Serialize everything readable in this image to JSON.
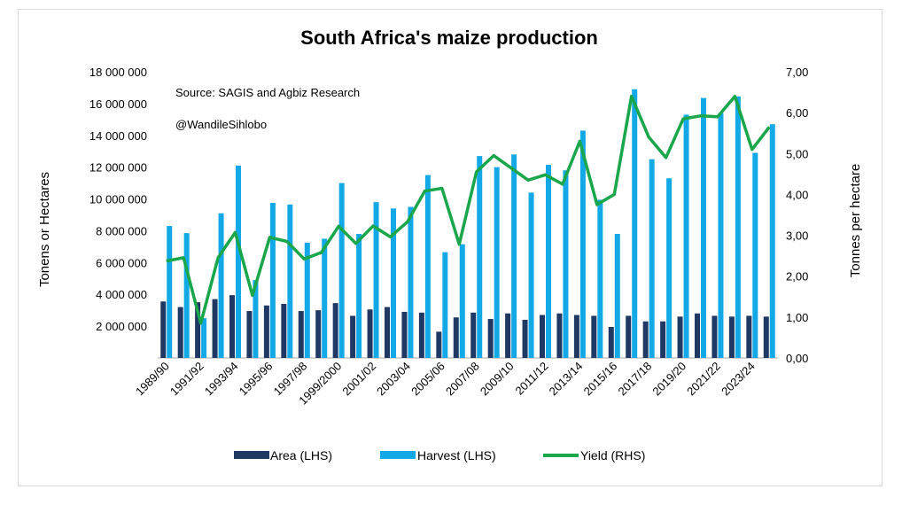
{
  "chart_data": {
    "type": "bar",
    "title": "South Africa's maize production",
    "annotations": [
      "Source: SAGIS and Agbiz Research",
      "@WandileSihlobo"
    ],
    "ylabel": "Tonens or Hectares",
    "y2label": "Tonnes per hectare",
    "ylim": [
      0,
      18000000
    ],
    "y2lim": [
      0,
      7
    ],
    "yticks": [
      "18 000 000",
      "16 000 000",
      "14 000 000",
      "12 000 000",
      "10 000 000",
      "8 000 000",
      "6 000 000",
      "4 000 000",
      "2 000 000"
    ],
    "y2ticks": [
      "7,00",
      "6,00",
      "5,00",
      "4,00",
      "3,00",
      "2,00",
      "1,00",
      "0,00"
    ],
    "categories": [
      "1989/90",
      "1990/91",
      "1991/92",
      "1992/93",
      "1993/94",
      "1994/95",
      "1995/96",
      "1996/97",
      "1997/98",
      "1998/99",
      "1999/2000",
      "2000/01",
      "2001/02",
      "2002/03",
      "2003/04",
      "2004/05",
      "2005/06",
      "2006/07",
      "2007/08",
      "2008/09",
      "2009/10",
      "2010/11",
      "2011/12",
      "2012/13",
      "2013/14",
      "2014/15",
      "2015/16",
      "2016/17",
      "2017/18",
      "2018/19",
      "2019/20",
      "2020/21",
      "2021/22",
      "2022/23",
      "2023/24",
      "2024/25"
    ],
    "xtick_labels": [
      "1989/90",
      "",
      "1991/92",
      "",
      "1993/94",
      "",
      "1995/96",
      "",
      "1997/98",
      "",
      "1999/2000",
      "",
      "2001/02",
      "",
      "2003/04",
      "",
      "2005/06",
      "",
      "2007/08",
      "",
      "2009/10",
      "",
      "2011/12",
      "",
      "2013/14",
      "",
      "2015/16",
      "",
      "2017/18",
      "",
      "2019/20",
      "",
      "2021/22",
      "",
      "2023/24",
      ""
    ],
    "series": [
      {
        "name": "Area (LHS)",
        "type": "bar",
        "axis": "left",
        "color": "#1f3864",
        "values": [
          3550000,
          3200000,
          3500000,
          3700000,
          3950000,
          2950000,
          3300000,
          3400000,
          2950000,
          3000000,
          3450000,
          2650000,
          3050000,
          3200000,
          2900000,
          2850000,
          1650000,
          2550000,
          2850000,
          2450000,
          2800000,
          2400000,
          2700000,
          2800000,
          2700000,
          2650000,
          1950000,
          2650000,
          2300000,
          2300000,
          2600000,
          2800000,
          2650000,
          2600000,
          2650000,
          2600000
        ]
      },
      {
        "name": "Harvest (LHS)",
        "type": "bar",
        "axis": "left",
        "color": "#13a8e6",
        "values": [
          8300000,
          7850000,
          2500000,
          9100000,
          12100000,
          4900000,
          9750000,
          9650000,
          7250000,
          7500000,
          11000000,
          7800000,
          9800000,
          9400000,
          9500000,
          11500000,
          6650000,
          7150000,
          12700000,
          12000000,
          12800000,
          10400000,
          12150000,
          11800000,
          14300000,
          9950000,
          7800000,
          16900000,
          12500000,
          11300000,
          15300000,
          16350000,
          15400000,
          16450000,
          12900000,
          14700000
        ]
      },
      {
        "name": "Yield (RHS)",
        "type": "line",
        "axis": "right",
        "color": "#1aa64a",
        "values": [
          2.37,
          2.45,
          0.85,
          2.45,
          3.07,
          1.53,
          2.95,
          2.85,
          2.42,
          2.58,
          3.22,
          2.8,
          3.23,
          2.96,
          3.33,
          4.08,
          4.15,
          2.78,
          4.55,
          4.95,
          4.65,
          4.35,
          4.48,
          4.25,
          5.3,
          3.75,
          4.0,
          6.4,
          5.4,
          4.9,
          5.85,
          5.92,
          5.9,
          6.4,
          5.1,
          5.65
        ]
      }
    ],
    "legend": "bottom"
  }
}
